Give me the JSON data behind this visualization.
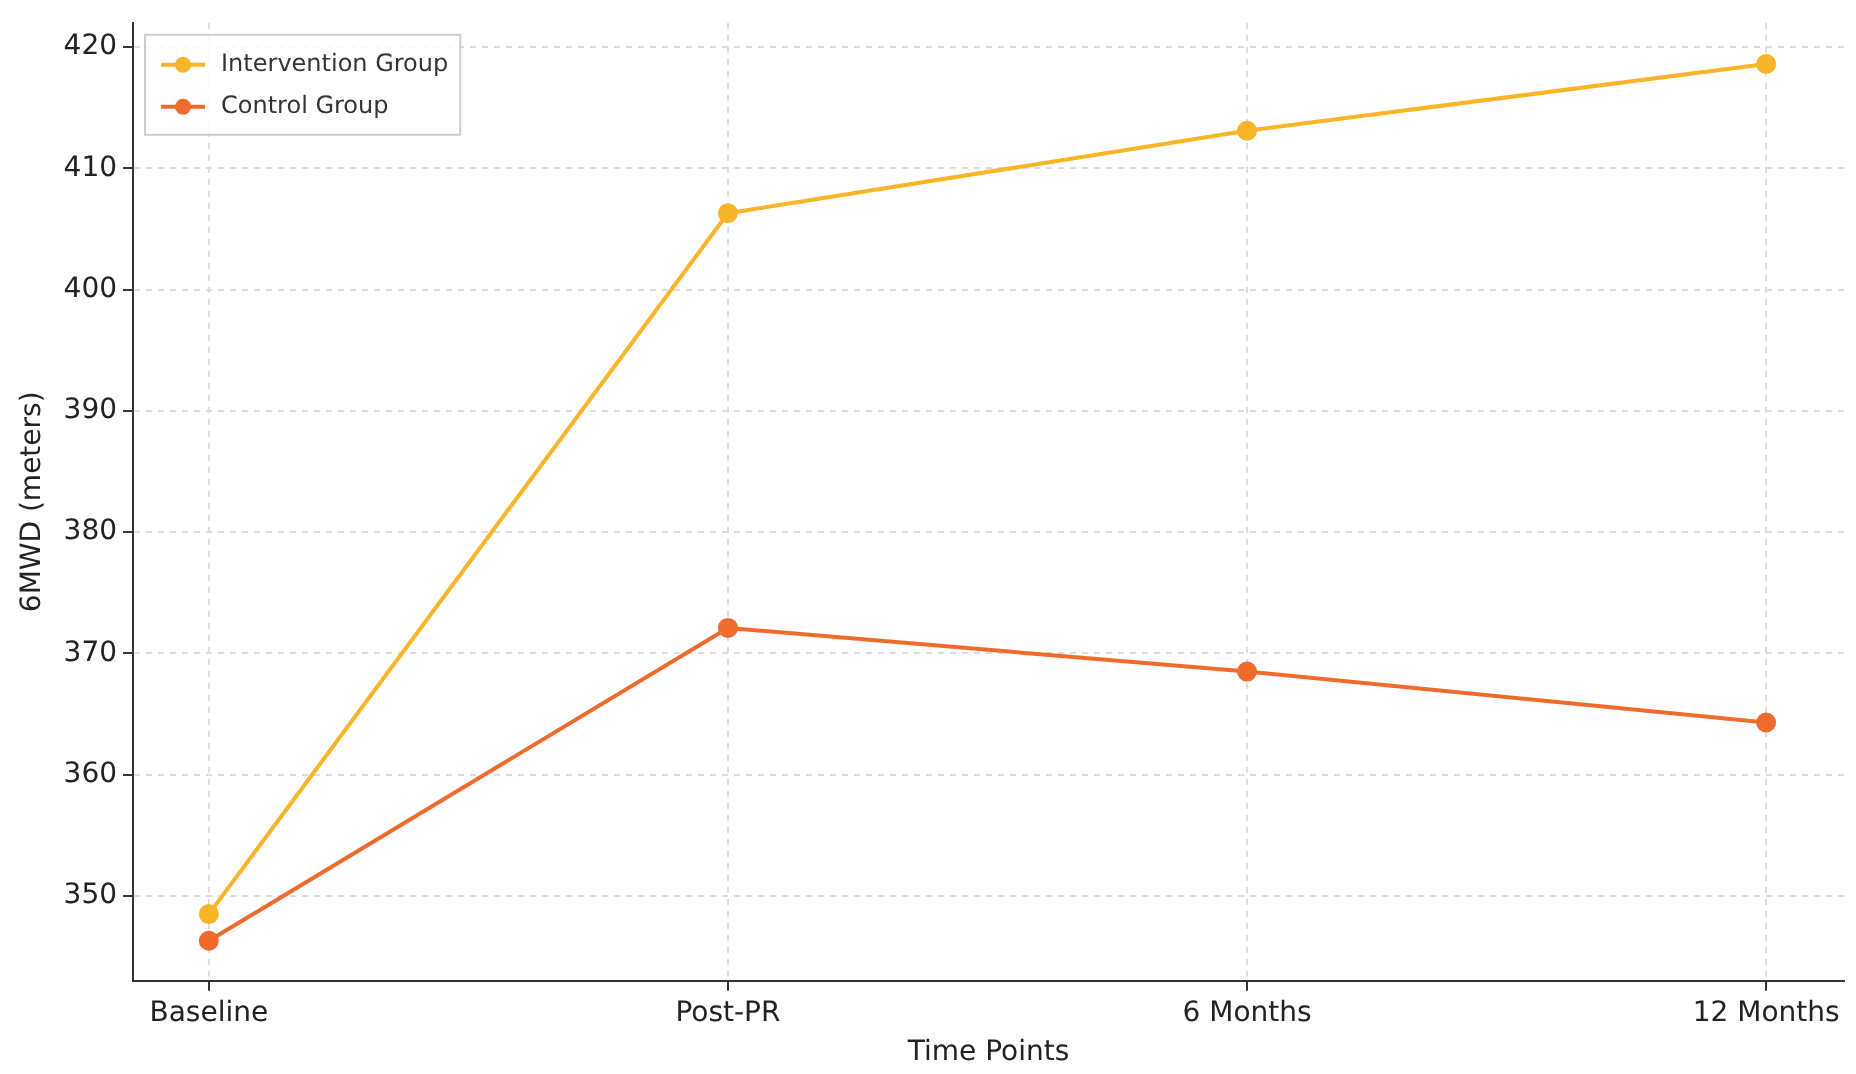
{
  "chart_data": {
    "type": "line",
    "xlabel": "Time Points",
    "ylabel": "6MWD (meters)",
    "categories": [
      "Baseline",
      "Post-PR",
      "6 Months",
      "12 Months"
    ],
    "series": [
      {
        "name": "Intervention Group",
        "color": "#f9b428",
        "values": [
          348.5,
          406.3,
          413.1,
          418.6
        ]
      },
      {
        "name": "Control Group",
        "color": "#ef6b2c",
        "values": [
          346.3,
          372.1,
          368.5,
          364.3
        ]
      }
    ],
    "ylim": [
      343,
      422
    ],
    "yticks": [
      350,
      360,
      370,
      380,
      390,
      400,
      410,
      420
    ],
    "grid": true,
    "legend": "top left",
    "marker": "circle",
    "line_style": "solid"
  }
}
